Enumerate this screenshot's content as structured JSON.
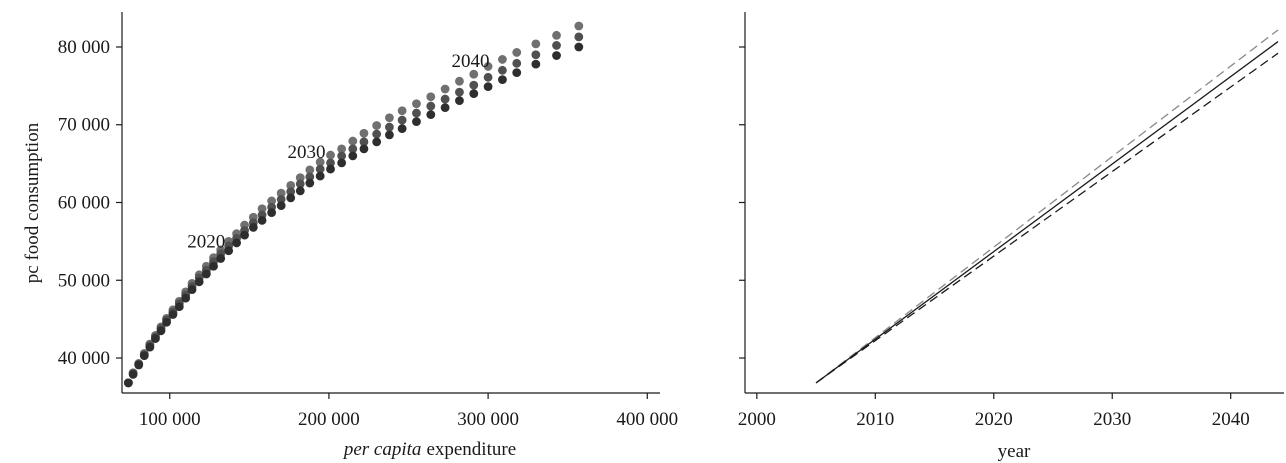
{
  "chart_data": [
    {
      "type": "scatter",
      "xlabel_italic": "per capita",
      "xlabel_rest": "expenditure",
      "ylabel": "pc food consumption",
      "xlim": [
        70000,
        408000
      ],
      "ylim": [
        35500,
        84500
      ],
      "xticks": [
        100000,
        200000,
        300000,
        400000
      ],
      "xtick_labels": [
        "100 000",
        "200 000",
        "300 000",
        "400 000"
      ],
      "yticks": [
        40000,
        50000,
        60000,
        70000,
        80000
      ],
      "ytick_labels": [
        "40 000",
        "50 000",
        "60 000",
        "70 000",
        "80 000"
      ],
      "annotations": [
        {
          "text": "2020",
          "x": 111000,
          "y": 54200
        },
        {
          "text": "2030",
          "x": 174000,
          "y": 65700
        },
        {
          "text": "2040",
          "x": 277000,
          "y": 77400
        }
      ],
      "series": [
        {
          "color": "#707070",
          "points": [
            [
              74000,
              36800
            ],
            [
              77000,
              38100
            ],
            [
              80500,
              39300
            ],
            [
              84000,
              40600
            ],
            [
              87500,
              41800
            ],
            [
              91000,
              42900
            ],
            [
              94500,
              44000
            ],
            [
              98000,
              45100
            ],
            [
              102000,
              46200
            ],
            [
              106000,
              47300
            ],
            [
              110000,
              48500
            ],
            [
              114000,
              49600
            ],
            [
              118500,
              50700
            ],
            [
              123000,
              51800
            ],
            [
              127500,
              52900
            ],
            [
              132000,
              53900
            ],
            [
              137000,
              55000
            ],
            [
              142000,
              56000
            ],
            [
              147000,
              57100
            ],
            [
              152500,
              58100
            ],
            [
              158000,
              59200
            ],
            [
              164000,
              60200
            ],
            [
              170000,
              61200
            ],
            [
              176000,
              62200
            ],
            [
              182000,
              63200
            ],
            [
              188000,
              64200
            ],
            [
              194500,
              65200
            ],
            [
              201000,
              66100
            ],
            [
              208000,
              66900
            ],
            [
              215000,
              67900
            ],
            [
              222000,
              68900
            ],
            [
              230000,
              69900
            ],
            [
              238000,
              70900
            ],
            [
              246000,
              71800
            ],
            [
              255000,
              72700
            ],
            [
              264000,
              73600
            ],
            [
              273000,
              74600
            ],
            [
              282000,
              75600
            ],
            [
              291000,
              76500
            ],
            [
              300000,
              77500
            ],
            [
              309000,
              78400
            ],
            [
              318000,
              79300
            ],
            [
              330000,
              80400
            ],
            [
              343000,
              81500
            ],
            [
              357000,
              82700
            ]
          ]
        },
        {
          "color": "#505050",
          "points": [
            [
              74000,
              36800
            ],
            [
              77000,
              38000
            ],
            [
              80500,
              39200
            ],
            [
              84000,
              40400
            ],
            [
              87500,
              41600
            ],
            [
              91000,
              42700
            ],
            [
              94500,
              43800
            ],
            [
              98000,
              44900
            ],
            [
              102000,
              45900
            ],
            [
              106000,
              47000
            ],
            [
              110000,
              48100
            ],
            [
              114000,
              49200
            ],
            [
              118500,
              50300
            ],
            [
              123000,
              51300
            ],
            [
              127500,
              52400
            ],
            [
              132000,
              53400
            ],
            [
              137000,
              54400
            ],
            [
              142000,
              55400
            ],
            [
              147000,
              56400
            ],
            [
              152500,
              57400
            ],
            [
              158000,
              58400
            ],
            [
              164000,
              59400
            ],
            [
              170000,
              60400
            ],
            [
              176000,
              61400
            ],
            [
              182000,
              62400
            ],
            [
              188000,
              63300
            ],
            [
              194500,
              64300
            ],
            [
              201000,
              65100
            ],
            [
              208000,
              66000
            ],
            [
              215000,
              66900
            ],
            [
              222000,
              67800
            ],
            [
              230000,
              68800
            ],
            [
              238000,
              69700
            ],
            [
              246000,
              70600
            ],
            [
              255000,
              71500
            ],
            [
              264000,
              72400
            ],
            [
              273000,
              73300
            ],
            [
              282000,
              74200
            ],
            [
              291000,
              75100
            ],
            [
              300000,
              76100
            ],
            [
              309000,
              77000
            ],
            [
              318000,
              77900
            ],
            [
              330000,
              79000
            ],
            [
              343000,
              80200
            ],
            [
              357000,
              81300
            ]
          ]
        },
        {
          "color": "#2e2e2e",
          "points": [
            [
              74000,
              36800
            ],
            [
              77000,
              37900
            ],
            [
              80500,
              39100
            ],
            [
              84000,
              40300
            ],
            [
              87500,
              41400
            ],
            [
              91000,
              42500
            ],
            [
              94500,
              43500
            ],
            [
              98000,
              44600
            ],
            [
              102000,
              45600
            ],
            [
              106000,
              46600
            ],
            [
              110000,
              47700
            ],
            [
              114000,
              48800
            ],
            [
              118500,
              49800
            ],
            [
              123000,
              50800
            ],
            [
              127500,
              51800
            ],
            [
              132000,
              52800
            ],
            [
              137000,
              53800
            ],
            [
              142000,
              54800
            ],
            [
              147000,
              55800
            ],
            [
              152500,
              56800
            ],
            [
              158000,
              57700
            ],
            [
              164000,
              58700
            ],
            [
              170000,
              59600
            ],
            [
              176000,
              60600
            ],
            [
              182000,
              61500
            ],
            [
              188000,
              62500
            ],
            [
              194500,
              63400
            ],
            [
              201000,
              64300
            ],
            [
              208000,
              65100
            ],
            [
              215000,
              66000
            ],
            [
              222000,
              66900
            ],
            [
              230000,
              67800
            ],
            [
              238000,
              68700
            ],
            [
              246000,
              69500
            ],
            [
              255000,
              70400
            ],
            [
              264000,
              71300
            ],
            [
              273000,
              72200
            ],
            [
              282000,
              73100
            ],
            [
              291000,
              74000
            ],
            [
              300000,
              74900
            ],
            [
              309000,
              75800
            ],
            [
              318000,
              76700
            ],
            [
              330000,
              77800
            ],
            [
              343000,
              78900
            ],
            [
              357000,
              80000
            ]
          ]
        }
      ]
    },
    {
      "type": "line",
      "xlabel": "year",
      "xlim": [
        1999,
        2044.5
      ],
      "ylim": [
        35500,
        84500
      ],
      "xticks": [
        2000,
        2010,
        2020,
        2030,
        2040
      ],
      "xtick_labels": [
        "2000",
        "2010",
        "2020",
        "2030",
        "2040"
      ],
      "yticks": [
        40000,
        50000,
        60000,
        70000,
        80000
      ],
      "series": [
        {
          "style": "dashed",
          "color": "#8a8a8a",
          "x": [
            2005,
            2044
          ],
          "y": [
            36800,
            82200
          ]
        },
        {
          "style": "solid",
          "color": "#1a1a1a",
          "x": [
            2005,
            2044
          ],
          "y": [
            36800,
            80700
          ]
        },
        {
          "style": "dashed",
          "color": "#1a1a1a",
          "x": [
            2005,
            2044
          ],
          "y": [
            36800,
            79200
          ]
        }
      ]
    }
  ]
}
